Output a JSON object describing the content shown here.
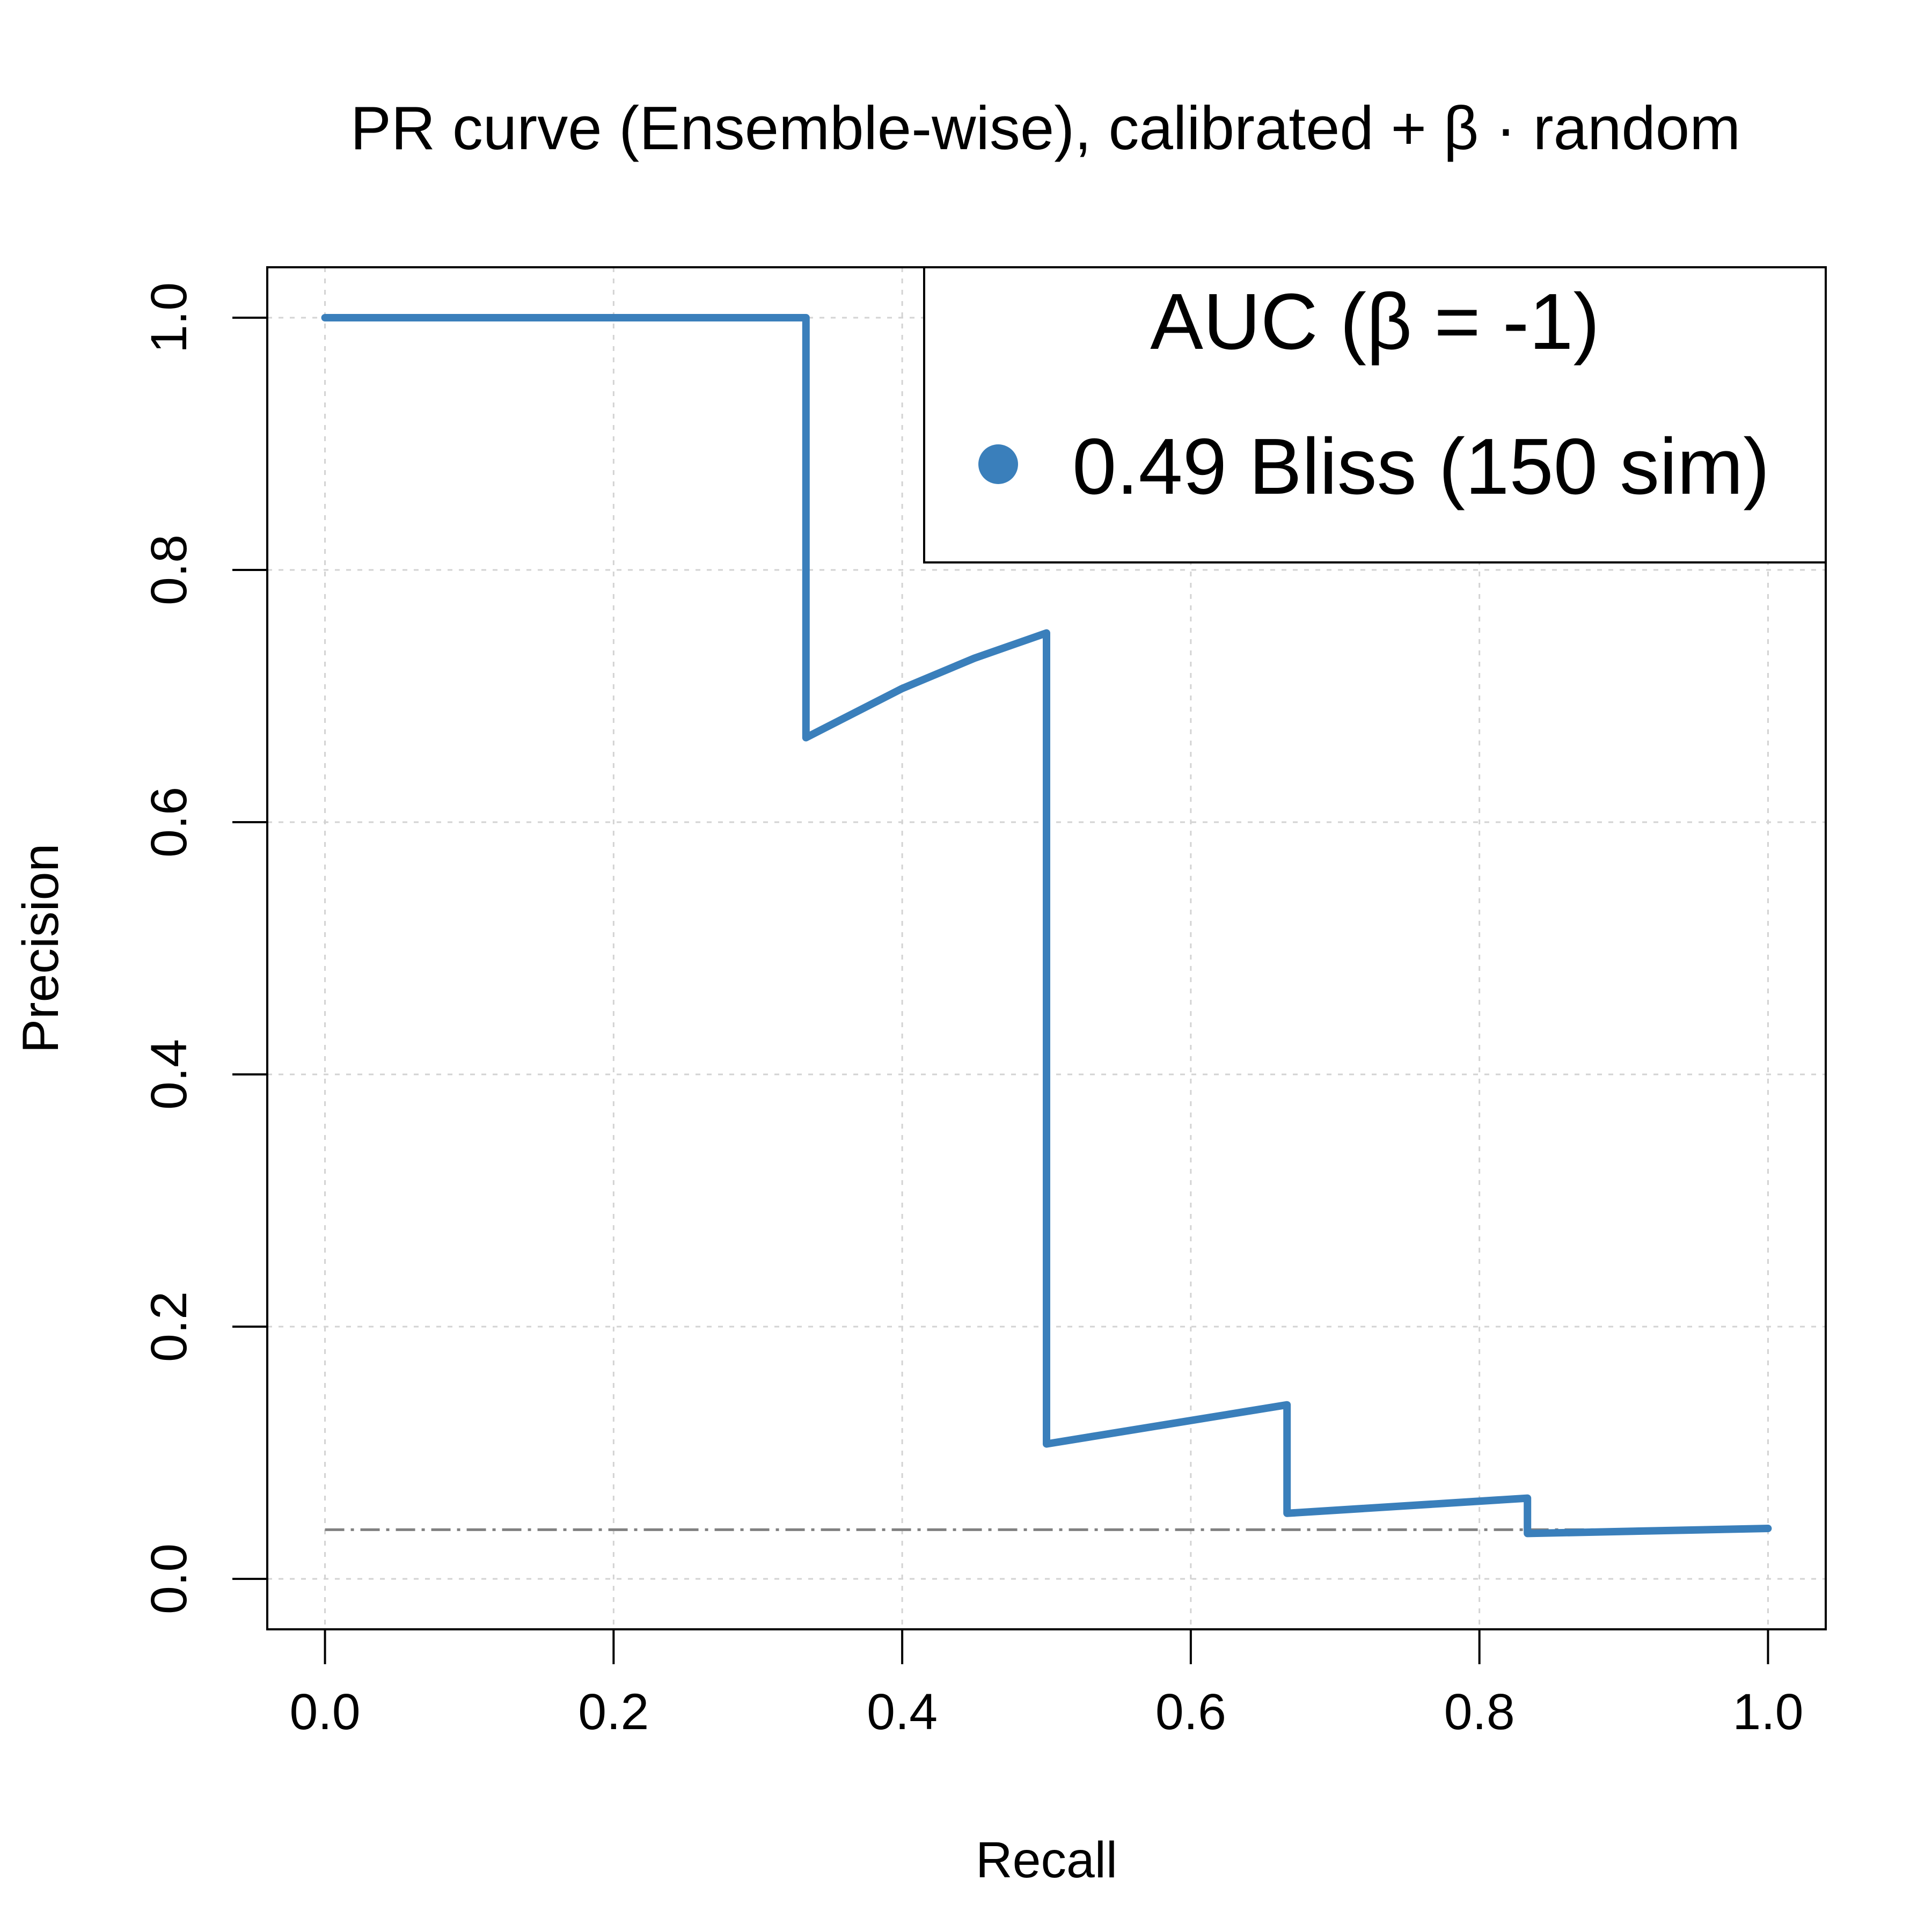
{
  "chart_data": {
    "type": "line",
    "title": "PR curve (Ensemble-wise), calibrated + β · random",
    "xlabel": "Recall",
    "ylabel": "Precision",
    "xlim": [
      -0.04,
      1.04
    ],
    "ylim": [
      -0.04,
      1.04
    ],
    "xticks": [
      0.0,
      0.2,
      0.4,
      0.6,
      0.8,
      1.0
    ],
    "yticks": [
      0.0,
      0.2,
      0.4,
      0.6,
      0.8,
      1.0
    ],
    "xtick_labels": [
      "0.0",
      "0.2",
      "0.4",
      "0.6",
      "0.8",
      "1.0"
    ],
    "ytick_labels": [
      "0.0",
      "0.2",
      "0.4",
      "0.6",
      "0.8",
      "1.0"
    ],
    "grid": true,
    "legend": {
      "title": "AUC (β = -1)",
      "position": "top-right",
      "entries": [
        "0.49 Bliss (150 sim)"
      ]
    },
    "series": [
      {
        "name": "0.49 Bliss (150 sim)",
        "color": "#3a7fbb",
        "x": [
          0.0,
          0.3333,
          0.3333,
          0.4,
          0.45,
          0.5,
          0.5,
          0.6667,
          0.6667,
          0.8333,
          0.8333,
          1.0
        ],
        "y": [
          1.0,
          1.0,
          0.667,
          0.706,
          0.73,
          0.75,
          0.107,
          0.138,
          0.052,
          0.064,
          0.036,
          0.04
        ]
      }
    ],
    "baseline": {
      "style": "dash-dot",
      "color": "#808080",
      "y": 0.039,
      "x_range": [
        0.0,
        1.0
      ]
    }
  }
}
